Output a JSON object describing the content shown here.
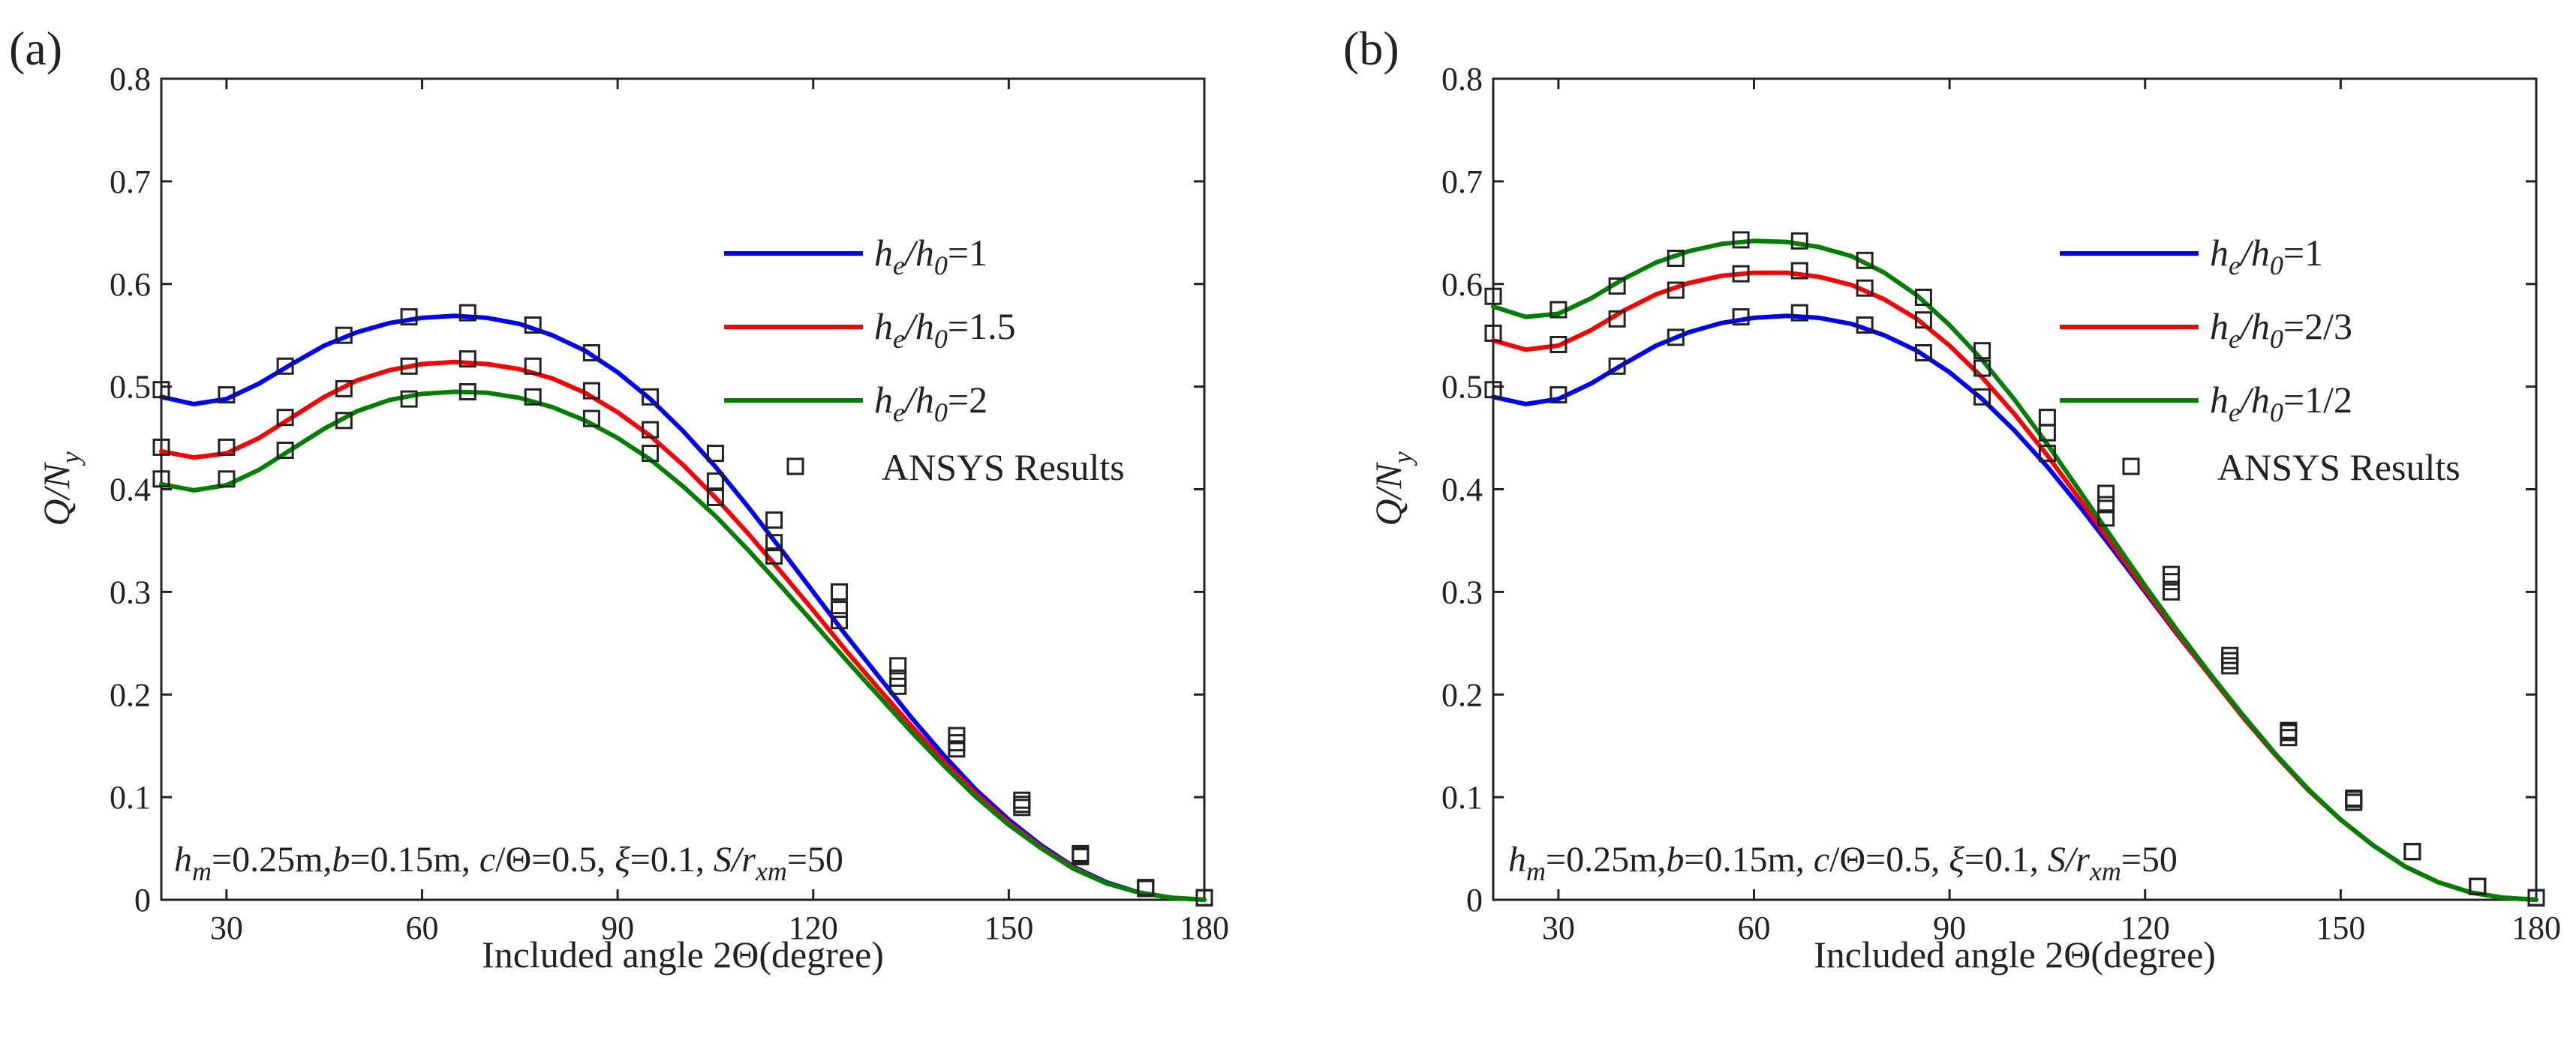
{
  "chart_data": [
    {
      "type": "line",
      "panel_label": "(a)",
      "xlabel": "Included angle 2Θ(degree)",
      "ylabel": {
        "main": "Q/N",
        "sub": "y"
      },
      "xlim": [
        20,
        180
      ],
      "ylim": [
        0,
        0.8
      ],
      "xticks": [
        30,
        60,
        90,
        120,
        150,
        180
      ],
      "yticks": [
        0,
        0.1,
        0.2,
        0.3,
        0.4,
        0.5,
        0.6,
        0.7,
        0.8
      ],
      "legend_position": "right",
      "series": [
        {
          "name": "h_e/h_0=1",
          "label": {
            "h": "h",
            "e": "e",
            "slash": "/",
            "h2": "h",
            "zero": "0",
            "value": "=1"
          },
          "color": "#0000ff",
          "x": [
            20,
            25,
            30,
            35,
            40,
            45,
            50,
            55,
            60,
            65,
            70,
            75,
            80,
            85,
            90,
            95,
            100,
            105,
            110,
            115,
            120,
            125,
            130,
            135,
            140,
            145,
            150,
            155,
            160,
            165,
            170,
            175,
            180
          ],
          "values": [
            0.49,
            0.483,
            0.488,
            0.503,
            0.522,
            0.54,
            0.553,
            0.562,
            0.567,
            0.569,
            0.567,
            0.561,
            0.55,
            0.535,
            0.514,
            0.488,
            0.457,
            0.422,
            0.383,
            0.342,
            0.3,
            0.258,
            0.218,
            0.178,
            0.141,
            0.107,
            0.078,
            0.053,
            0.032,
            0.017,
            0.007,
            0.002,
            0.0
          ]
        },
        {
          "name": "h_e/h_0=1.5",
          "label": {
            "h": "h",
            "e": "e",
            "slash": "/",
            "h2": "h",
            "zero": "0",
            "value": "=1.5"
          },
          "color": "#ff0000",
          "x": [
            20,
            25,
            30,
            35,
            40,
            45,
            50,
            55,
            60,
            65,
            70,
            75,
            80,
            85,
            90,
            95,
            100,
            105,
            110,
            115,
            120,
            125,
            130,
            135,
            140,
            145,
            150,
            155,
            160,
            165,
            170,
            175,
            180
          ],
          "values": [
            0.437,
            0.431,
            0.435,
            0.45,
            0.47,
            0.49,
            0.506,
            0.516,
            0.522,
            0.524,
            0.522,
            0.517,
            0.508,
            0.494,
            0.475,
            0.452,
            0.424,
            0.392,
            0.357,
            0.32,
            0.282,
            0.243,
            0.206,
            0.17,
            0.135,
            0.103,
            0.075,
            0.051,
            0.031,
            0.016,
            0.007,
            0.002,
            0.0
          ]
        },
        {
          "name": "h_e/h_0=2",
          "label": {
            "h": "h",
            "e": "e",
            "slash": "/",
            "h2": "h",
            "zero": "0",
            "value": "=2"
          },
          "color": "#008000",
          "x": [
            20,
            25,
            30,
            35,
            40,
            45,
            50,
            55,
            60,
            65,
            70,
            75,
            80,
            85,
            90,
            95,
            100,
            105,
            110,
            115,
            120,
            125,
            130,
            135,
            140,
            145,
            150,
            155,
            160,
            165,
            170,
            175,
            180
          ],
          "values": [
            0.405,
            0.399,
            0.404,
            0.419,
            0.439,
            0.459,
            0.476,
            0.487,
            0.493,
            0.495,
            0.494,
            0.489,
            0.48,
            0.467,
            0.45,
            0.429,
            0.403,
            0.374,
            0.341,
            0.306,
            0.27,
            0.234,
            0.199,
            0.164,
            0.131,
            0.1,
            0.073,
            0.05,
            0.03,
            0.016,
            0.007,
            0.002,
            0.0
          ]
        }
      ],
      "markers": {
        "name": "ANSYS Results",
        "x": [
          20,
          30,
          39,
          48,
          58,
          67,
          77,
          86,
          95,
          105,
          114,
          124,
          133,
          142,
          152,
          161,
          171,
          180
        ],
        "series_values": [
          [
            0.497,
            0.492,
            0.52,
            0.55,
            0.568,
            0.572,
            0.56,
            0.533,
            0.49,
            0.435,
            0.37,
            0.3,
            0.228,
            0.16,
            0.097,
            0.045,
            0.012,
            0.002
          ],
          [
            0.441,
            0.441,
            0.47,
            0.498,
            0.52,
            0.527,
            0.52,
            0.496,
            0.458,
            0.408,
            0.348,
            0.283,
            0.216,
            0.153,
            0.093,
            0.044,
            0.011,
            0.002
          ],
          [
            0.41,
            0.41,
            0.438,
            0.467,
            0.488,
            0.495,
            0.49,
            0.469,
            0.435,
            0.392,
            0.335,
            0.272,
            0.208,
            0.147,
            0.09,
            0.042,
            0.011,
            0.002
          ]
        ]
      },
      "annotation": {
        "h": "h",
        "m": "m",
        "p1": "=0.25m,",
        "b": "b",
        "p2": "=0.15m, ",
        "c": "c",
        "p3": "/Θ=0.5, ",
        "xi": "ξ",
        "p4": "=0.1, ",
        "S": "S",
        "slash": "/",
        "r": "r",
        "xm": "xm",
        "p5": "=50"
      }
    },
    {
      "type": "line",
      "panel_label": "(b)",
      "xlabel": "Included angle 2Θ(degree)",
      "ylabel": {
        "main": "Q/N",
        "sub": "y"
      },
      "xlim": [
        20,
        180
      ],
      "ylim": [
        0,
        0.8
      ],
      "xticks": [
        30,
        60,
        90,
        120,
        150,
        180
      ],
      "yticks": [
        0,
        0.1,
        0.2,
        0.3,
        0.4,
        0.5,
        0.6,
        0.7,
        0.8
      ],
      "legend_position": "right",
      "series": [
        {
          "name": "h_e/h_0=1",
          "label": {
            "h": "h",
            "e": "e",
            "slash": "/",
            "h2": "h",
            "zero": "0",
            "value": "=1"
          },
          "color": "#0000ff",
          "x": [
            20,
            25,
            30,
            35,
            40,
            45,
            50,
            55,
            60,
            65,
            70,
            75,
            80,
            85,
            90,
            95,
            100,
            105,
            110,
            115,
            120,
            125,
            130,
            135,
            140,
            145,
            150,
            155,
            160,
            165,
            170,
            175,
            180
          ],
          "values": [
            0.49,
            0.483,
            0.488,
            0.503,
            0.522,
            0.54,
            0.553,
            0.562,
            0.567,
            0.569,
            0.567,
            0.561,
            0.55,
            0.535,
            0.514,
            0.488,
            0.457,
            0.422,
            0.383,
            0.342,
            0.3,
            0.258,
            0.218,
            0.178,
            0.141,
            0.107,
            0.078,
            0.053,
            0.032,
            0.017,
            0.007,
            0.002,
            0.0
          ]
        },
        {
          "name": "h_e/h_0=2/3",
          "label": {
            "h": "h",
            "e": "e",
            "slash": "/",
            "h2": "h",
            "zero": "0",
            "value": "=2/3"
          },
          "color": "#ff0000",
          "x": [
            20,
            25,
            30,
            35,
            40,
            45,
            50,
            55,
            60,
            65,
            70,
            75,
            80,
            85,
            90,
            95,
            100,
            105,
            110,
            115,
            120,
            125,
            130,
            135,
            140,
            145,
            150,
            155,
            160,
            165,
            170,
            175,
            180
          ],
          "values": [
            0.545,
            0.536,
            0.54,
            0.555,
            0.574,
            0.59,
            0.601,
            0.608,
            0.611,
            0.611,
            0.607,
            0.599,
            0.585,
            0.566,
            0.54,
            0.509,
            0.473,
            0.433,
            0.39,
            0.346,
            0.302,
            0.259,
            0.218,
            0.178,
            0.141,
            0.107,
            0.078,
            0.053,
            0.032,
            0.017,
            0.007,
            0.002,
            0.0
          ]
        },
        {
          "name": "h_e/h_0=1/2",
          "label": {
            "h": "h",
            "e": "e",
            "slash": "/",
            "h2": "h",
            "zero": "0",
            "value": "=1/2"
          },
          "color": "#008000",
          "x": [
            20,
            25,
            30,
            35,
            40,
            45,
            50,
            55,
            60,
            65,
            70,
            75,
            80,
            85,
            90,
            95,
            100,
            105,
            110,
            115,
            120,
            125,
            130,
            135,
            140,
            145,
            150,
            155,
            160,
            165,
            170,
            175,
            180
          ],
          "values": [
            0.578,
            0.568,
            0.571,
            0.586,
            0.605,
            0.621,
            0.632,
            0.639,
            0.642,
            0.641,
            0.636,
            0.627,
            0.611,
            0.589,
            0.56,
            0.526,
            0.487,
            0.444,
            0.398,
            0.352,
            0.306,
            0.262,
            0.22,
            0.18,
            0.142,
            0.108,
            0.078,
            0.053,
            0.032,
            0.017,
            0.007,
            0.002,
            0.0
          ]
        }
      ],
      "markers": {
        "name": "ANSYS Results",
        "x": [
          20,
          30,
          39,
          48,
          58,
          67,
          77,
          86,
          95,
          105,
          114,
          124,
          133,
          142,
          152,
          161,
          171,
          180
        ],
        "series_values": [
          [
            0.497,
            0.492,
            0.52,
            0.548,
            0.568,
            0.572,
            0.56,
            0.533,
            0.49,
            0.435,
            0.372,
            0.3,
            0.228,
            0.158,
            0.095,
            0.047,
            0.013,
            0.002
          ],
          [
            0.552,
            0.541,
            0.566,
            0.594,
            0.61,
            0.613,
            0.596,
            0.565,
            0.518,
            0.455,
            0.385,
            0.31,
            0.233,
            0.163,
            0.098,
            0.047,
            0.013,
            0.002
          ],
          [
            0.588,
            0.575,
            0.598,
            0.625,
            0.643,
            0.642,
            0.623,
            0.587,
            0.535,
            0.47,
            0.396,
            0.317,
            0.238,
            0.165,
            0.099,
            0.047,
            0.013,
            0.002
          ]
        ]
      },
      "annotation": {
        "h": "h",
        "m": "m",
        "p1": "=0.25m,",
        "b": "b",
        "p2": "=0.15m, ",
        "c": "c",
        "p3": "/Θ=0.5, ",
        "xi": "ξ",
        "p4": "=0.1, ",
        "S": "S",
        "slash": "/",
        "r": "r",
        "xm": "xm",
        "p5": "=50"
      }
    }
  ]
}
